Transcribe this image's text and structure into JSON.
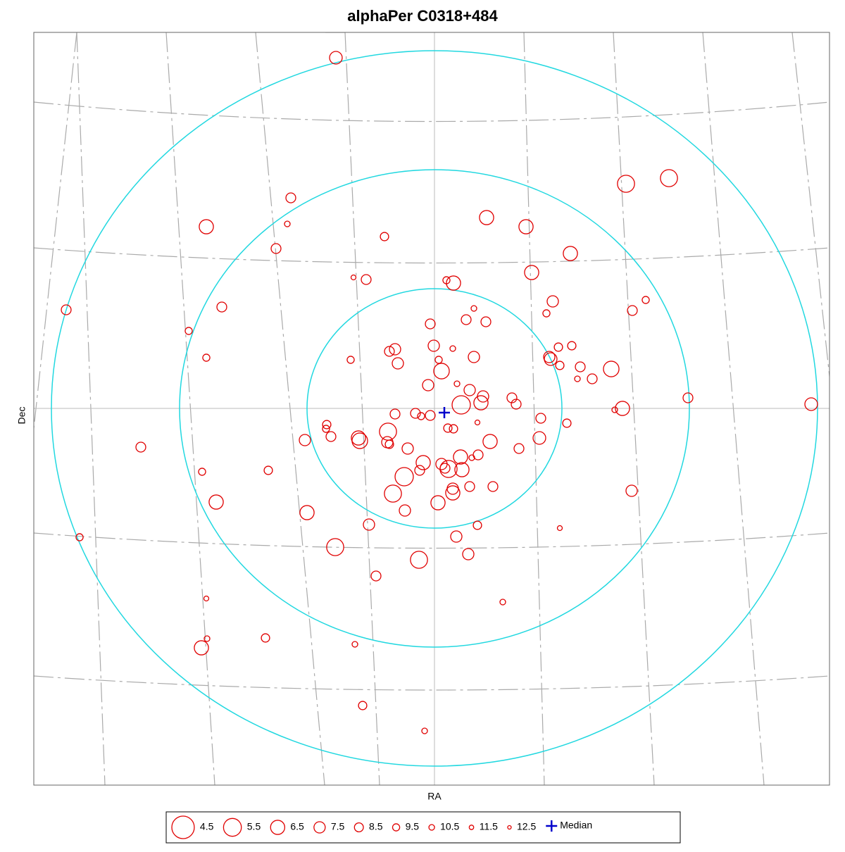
{
  "chart_data": {
    "type": "scatter",
    "title": "alphaPer  C0318+484",
    "x_label": "RA",
    "y_label": "Dec",
    "xlim": [
      0,
      1130
    ],
    "ylim": [
      0,
      1069
    ],
    "color": "#e00000",
    "x": [
      429,
      841,
      902,
      365,
      245,
      360,
      643,
      699,
      498,
      344,
      762,
      707,
      454,
      472,
      586,
      596,
      46,
      267,
      737,
      869,
      850,
      625,
      614,
      642,
      728,
      563,
      220,
      568,
      595,
      513,
      505,
      745,
      764,
      245,
      450,
      625,
      732,
      575,
      517,
      579,
      747,
      776,
      820,
      734,
      772,
      793,
      560,
      601,
      619,
      638,
      679,
      685,
      607,
      635,
      929,
      1104,
      825,
      836,
      513,
      542,
      550,
      563,
      720,
      757,
      416,
      630,
      588,
      596,
      503,
      415,
      422,
      461,
      463,
      385,
      502,
      505,
      718,
      648,
      689,
      152,
      531,
      631,
      606,
      622,
      553,
      579,
      548,
      584,
      608,
      589,
      239,
      333,
      526,
      595,
      595,
      619,
      652,
      510,
      259,
      574,
      849,
      388,
      527,
      476,
      630,
      747,
      600,
      65,
      428,
      617,
      547,
      486,
      666,
      245,
      238,
      246,
      329,
      456,
      467,
      555
    ],
    "y": [
      1033,
      854,
      862,
      834,
      793,
      797,
      806,
      793,
      779,
      762,
      755,
      728,
      721,
      718,
      717,
      713,
      675,
      679,
      687,
      689,
      674,
      677,
      661,
      658,
      670,
      655,
      645,
      624,
      620,
      619,
      616,
      622,
      624,
      607,
      604,
      608,
      608,
      604,
      599,
      588,
      596,
      594,
      591,
      605,
      577,
      577,
      568,
      570,
      561,
      552,
      550,
      541,
      540,
      543,
      550,
      541,
      533,
      535,
      527,
      528,
      524,
      525,
      521,
      514,
      512,
      515,
      507,
      506,
      502,
      506,
      495,
      493,
      489,
      490,
      487,
      484,
      493,
      488,
      478,
      480,
      478,
      469,
      466,
      465,
      458,
      456,
      447,
      450,
      448,
      449,
      445,
      447,
      438,
      421,
      415,
      424,
      424,
      414,
      402,
      401,
      418,
      387,
      390,
      370,
      369,
      365,
      353,
      352,
      338,
      328,
      320,
      297,
      260,
      265,
      195,
      208,
      209,
      200,
      113,
      77
    ],
    "sizes": [
      7.0,
      5.7,
      5.7,
      8.1,
      6.5,
      10.5,
      6.5,
      6.5,
      8.8,
      8.1,
      6.5,
      6.5,
      11.1,
      8.1,
      9.5,
      6.5,
      8.1,
      8.1,
      7.5,
      9.5,
      8.1,
      10.5,
      8.1,
      8.1,
      9.5,
      8.1,
      9.5,
      7.5,
      10.5,
      7.5,
      8.1,
      8.8,
      8.8,
      9.5,
      9.5,
      7.5,
      7.5,
      9.5,
      7.5,
      6.1,
      8.8,
      8.1,
      6.1,
      7.0,
      10.5,
      8.1,
      7.5,
      10.5,
      7.5,
      7.5,
      8.1,
      8.1,
      5.4,
      6.5,
      8.1,
      7.0,
      10.5,
      6.5,
      8.1,
      8.1,
      9.5,
      8.1,
      8.1,
      8.8,
      8.8,
      11.1,
      8.8,
      8.8,
      5.7,
      9.5,
      8.1,
      6.5,
      6.1,
      7.5,
      7.5,
      8.8,
      7.0,
      6.5,
      8.1,
      8.1,
      7.5,
      8.1,
      6.5,
      10.5,
      6.5,
      7.5,
      8.1,
      8.1,
      6.5,
      5.7,
      9.5,
      8.8,
      5.4,
      7.5,
      6.5,
      8.1,
      8.1,
      5.7,
      6.5,
      6.5,
      7.5,
      6.5,
      7.5,
      7.5,
      8.8,
      11.1,
      7.5,
      9.5,
      5.7,
      7.5,
      5.7,
      8.1,
      10.5,
      11.1,
      6.5,
      10.5,
      8.8,
      10.5,
      8.8,
      10.5
    ],
    "legend_sizes": [
      4.5,
      5.5,
      6.5,
      7.5,
      8.5,
      9.5,
      10.5,
      11.5,
      12.5
    ],
    "median": {
      "name": "Median",
      "x": 583,
      "y": 529,
      "color": "#0000cc"
    }
  }
}
